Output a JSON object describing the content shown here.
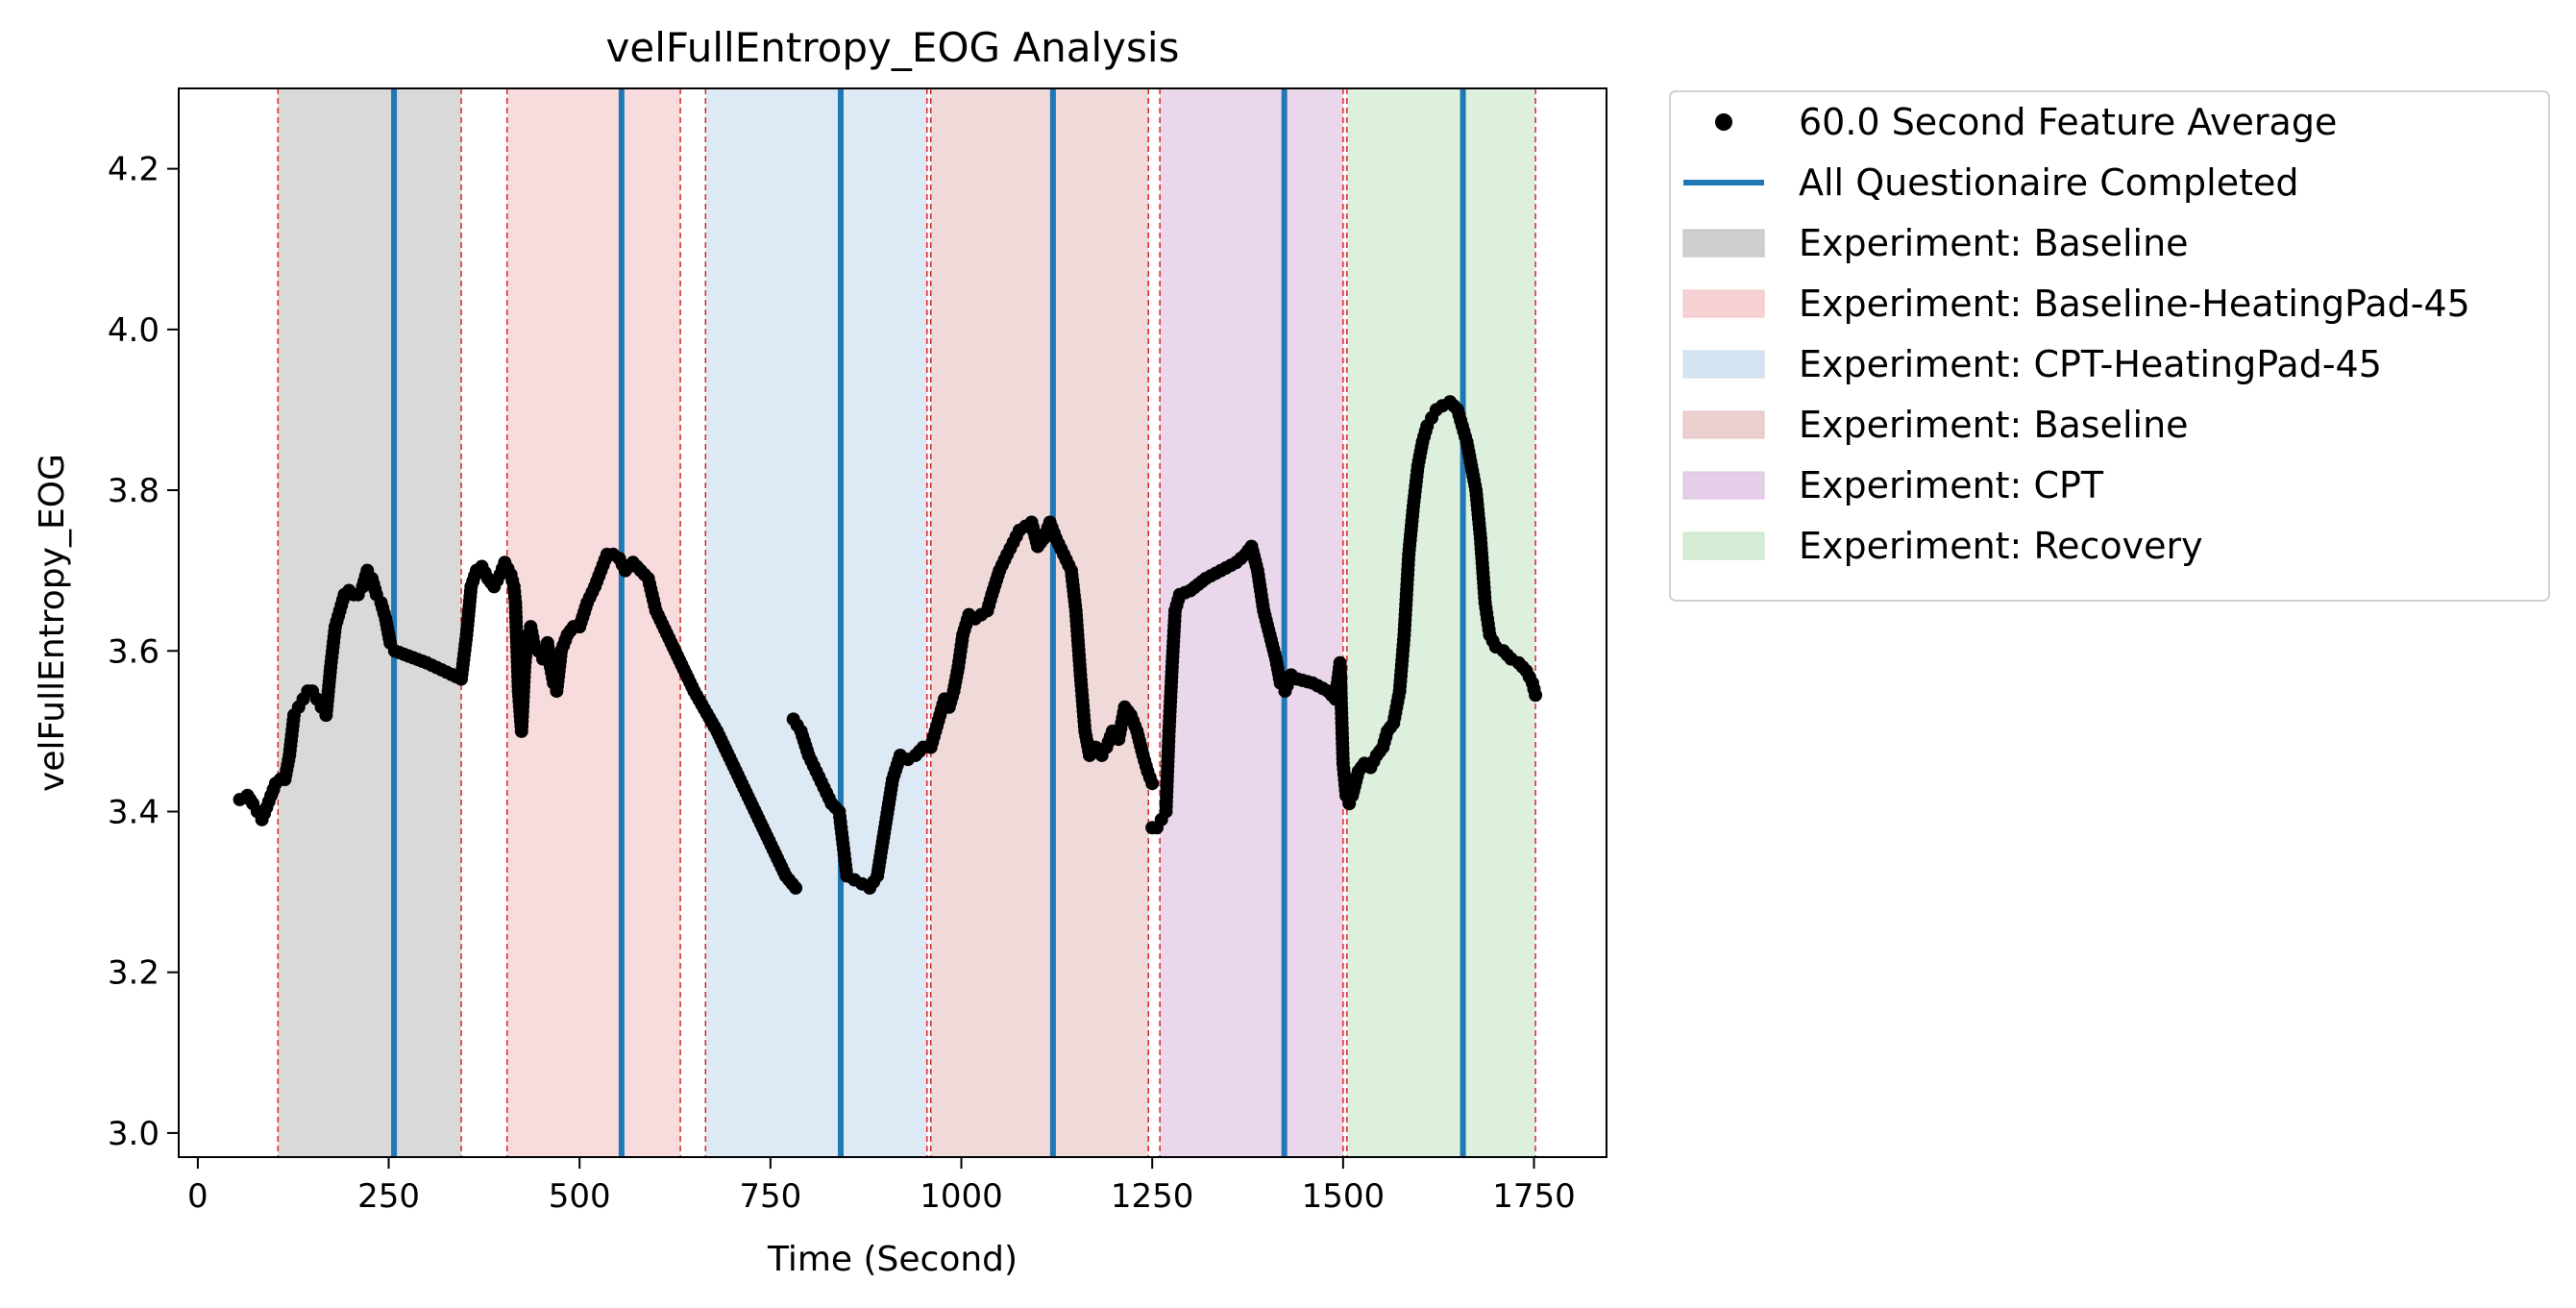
{
  "chart_data": {
    "type": "scatter",
    "title": "velFullEntropy_EOG Analysis",
    "xlabel": "Time (Second)",
    "ylabel": "velFullEntropy_EOG",
    "xlim": [
      -25,
      1845
    ],
    "ylim": [
      2.97,
      4.3
    ],
    "xticks": [
      0,
      250,
      500,
      750,
      1000,
      1250,
      1500,
      1750
    ],
    "yticks": [
      3.0,
      3.2,
      3.4,
      3.6,
      3.8,
      4.0,
      4.2
    ],
    "grid": false,
    "legend_position": "outside-top-right",
    "colors": {
      "points": "#000000",
      "questionnaire": "#1f77b4",
      "boundary": "#d62728"
    },
    "legend": [
      {
        "label": "60.0 Second Feature Average",
        "kind": "marker",
        "color": "#000000"
      },
      {
        "label": "All Questionaire Completed",
        "kind": "line",
        "color": "#1f77b4"
      },
      {
        "label": "Experiment: Baseline",
        "kind": "patch",
        "color": "#bfbfbf"
      },
      {
        "label": "Experiment: Baseline-HeatingPad-45",
        "kind": "patch",
        "color": "#f4c3c6"
      },
      {
        "label": "Experiment: CPT-HeatingPad-45",
        "kind": "patch",
        "color": "#c6dbee"
      },
      {
        "label": "Experiment: Baseline",
        "kind": "patch",
        "color": "#e6c0c0"
      },
      {
        "label": "Experiment: CPT",
        "kind": "patch",
        "color": "#dcbde0"
      },
      {
        "label": "Experiment: Recovery",
        "kind": "patch",
        "color": "#c6e6c6"
      }
    ],
    "regions": [
      {
        "x0": 105,
        "x1": 345,
        "color": "#bfbfbf"
      },
      {
        "x0": 405,
        "x1": 632,
        "color": "#f4c3c6"
      },
      {
        "x0": 665,
        "x1": 955,
        "color": "#c6dbee"
      },
      {
        "x0": 960,
        "x1": 1245,
        "color": "#e6c0c0"
      },
      {
        "x0": 1260,
        "x1": 1500,
        "color": "#dcbde0"
      },
      {
        "x0": 1505,
        "x1": 1752,
        "color": "#c6e6c6"
      }
    ],
    "boundaries": [
      105,
      345,
      405,
      632,
      665,
      955,
      960,
      1245,
      1260,
      1500,
      1505,
      1752
    ],
    "questionnaire_lines": [
      257,
      555,
      842,
      1120,
      1423,
      1657
    ],
    "series": [
      {
        "name": "60.0 Second Feature Average",
        "segments": [
          [
            [
              55,
              3.415
            ],
            [
              65,
              3.42
            ],
            [
              72,
              3.41
            ],
            [
              78,
              3.4
            ],
            [
              84,
              3.39
            ],
            [
              90,
              3.405
            ],
            [
              96,
              3.42
            ],
            [
              102,
              3.435
            ],
            [
              108,
              3.44
            ],
            [
              114,
              3.44
            ],
            [
              120,
              3.47
            ],
            [
              126,
              3.52
            ],
            [
              132,
              3.53
            ],
            [
              138,
              3.54
            ],
            [
              144,
              3.55
            ],
            [
              150,
              3.55
            ],
            [
              156,
              3.54
            ],
            [
              162,
              3.53
            ],
            [
              168,
              3.52
            ],
            [
              174,
              3.58
            ],
            [
              180,
              3.63
            ],
            [
              186,
              3.65
            ],
            [
              192,
              3.67
            ],
            [
              198,
              3.675
            ],
            [
              204,
              3.67
            ],
            [
              210,
              3.67
            ],
            [
              216,
              3.68
            ],
            [
              222,
              3.7
            ],
            [
              228,
              3.69
            ],
            [
              234,
              3.67
            ],
            [
              240,
              3.66
            ],
            [
              246,
              3.64
            ],
            [
              252,
              3.61
            ],
            [
              258,
              3.6
            ],
            [
              300,
              3.585
            ],
            [
              345,
              3.565
            ],
            [
              352,
              3.62
            ],
            [
              358,
              3.68
            ],
            [
              365,
              3.7
            ],
            [
              372,
              3.705
            ],
            [
              380,
              3.69
            ],
            [
              388,
              3.68
            ],
            [
              396,
              3.695
            ],
            [
              402,
              3.71
            ],
            [
              410,
              3.695
            ],
            [
              414,
              3.68
            ],
            [
              416,
              3.66
            ],
            [
              420,
              3.55
            ],
            [
              424,
              3.5
            ],
            [
              428,
              3.58
            ],
            [
              432,
              3.62
            ],
            [
              436,
              3.63
            ],
            [
              440,
              3.61
            ],
            [
              446,
              3.6
            ],
            [
              452,
              3.59
            ],
            [
              458,
              3.61
            ],
            [
              462,
              3.58
            ],
            [
              466,
              3.56
            ],
            [
              470,
              3.55
            ],
            [
              476,
              3.6
            ],
            [
              484,
              3.62
            ],
            [
              492,
              3.63
            ],
            [
              500,
              3.63
            ],
            [
              510,
              3.66
            ],
            [
              520,
              3.68
            ],
            [
              528,
              3.7
            ],
            [
              536,
              3.72
            ],
            [
              544,
              3.72
            ],
            [
              552,
              3.715
            ],
            [
              560,
              3.7
            ],
            [
              570,
              3.71
            ],
            [
              580,
              3.7
            ],
            [
              590,
              3.69
            ],
            [
              600,
              3.65
            ],
            [
              620,
              3.61
            ],
            [
              650,
              3.55
            ],
            [
              680,
              3.5
            ],
            [
              710,
              3.44
            ],
            [
              740,
              3.38
            ],
            [
              770,
              3.32
            ],
            [
              783,
              3.305
            ]
          ],
          [
            [
              780,
              3.515
            ],
            [
              790,
              3.5
            ],
            [
              800,
              3.47
            ],
            [
              810,
              3.45
            ],
            [
              820,
              3.43
            ],
            [
              830,
              3.41
            ],
            [
              840,
              3.4
            ],
            [
              845,
              3.36
            ],
            [
              850,
              3.32
            ],
            [
              860,
              3.315
            ],
            [
              870,
              3.31
            ],
            [
              880,
              3.305
            ],
            [
              890,
              3.32
            ],
            [
              900,
              3.38
            ],
            [
              910,
              3.44
            ],
            [
              920,
              3.47
            ],
            [
              930,
              3.465
            ],
            [
              940,
              3.47
            ],
            [
              950,
              3.48
            ],
            [
              960,
              3.48
            ],
            [
              966,
              3.5
            ],
            [
              972,
              3.52
            ],
            [
              978,
              3.54
            ],
            [
              984,
              3.53
            ],
            [
              990,
              3.55
            ],
            [
              996,
              3.58
            ],
            [
              1002,
              3.62
            ],
            [
              1010,
              3.645
            ],
            [
              1018,
              3.64
            ],
            [
              1026,
              3.645
            ],
            [
              1034,
              3.65
            ],
            [
              1040,
              3.67
            ],
            [
              1050,
              3.7
            ],
            [
              1060,
              3.72
            ],
            [
              1068,
              3.735
            ],
            [
              1076,
              3.75
            ],
            [
              1084,
              3.755
            ],
            [
              1092,
              3.76
            ],
            [
              1100,
              3.73
            ],
            [
              1108,
              3.74
            ],
            [
              1116,
              3.76
            ],
            [
              1124,
              3.74
            ],
            [
              1134,
              3.72
            ],
            [
              1144,
              3.7
            ],
            [
              1150,
              3.65
            ],
            [
              1156,
              3.57
            ],
            [
              1162,
              3.5
            ],
            [
              1168,
              3.47
            ],
            [
              1176,
              3.48
            ],
            [
              1184,
              3.47
            ],
            [
              1190,
              3.48
            ],
            [
              1198,
              3.5
            ],
            [
              1206,
              3.49
            ],
            [
              1214,
              3.53
            ],
            [
              1222,
              3.52
            ],
            [
              1230,
              3.5
            ],
            [
              1238,
              3.47
            ],
            [
              1244,
              3.45
            ],
            [
              1250,
              3.435
            ]
          ],
          [
            [
              1250,
              3.38
            ],
            [
              1256,
              3.38
            ],
            [
              1262,
              3.39
            ],
            [
              1268,
              3.4
            ],
            [
              1272,
              3.5
            ],
            [
              1276,
              3.58
            ],
            [
              1280,
              3.65
            ],
            [
              1286,
              3.67
            ],
            [
              1300,
              3.675
            ],
            [
              1320,
              3.69
            ],
            [
              1340,
              3.7
            ],
            [
              1360,
              3.71
            ],
            [
              1372,
              3.72
            ],
            [
              1380,
              3.73
            ],
            [
              1388,
              3.7
            ],
            [
              1396,
              3.65
            ],
            [
              1404,
              3.62
            ],
            [
              1412,
              3.59
            ],
            [
              1418,
              3.56
            ],
            [
              1424,
              3.55
            ],
            [
              1432,
              3.57
            ],
            [
              1440,
              3.565
            ],
            [
              1460,
              3.56
            ],
            [
              1480,
              3.55
            ],
            [
              1490,
              3.54
            ],
            [
              1496,
              3.585
            ],
            [
              1500,
              3.46
            ],
            [
              1504,
              3.42
            ],
            [
              1508,
              3.41
            ],
            [
              1512,
              3.42
            ],
            [
              1520,
              3.45
            ],
            [
              1528,
              3.46
            ],
            [
              1536,
              3.455
            ],
            [
              1544,
              3.47
            ],
            [
              1552,
              3.48
            ],
            [
              1558,
              3.5
            ],
            [
              1566,
              3.51
            ],
            [
              1574,
              3.55
            ],
            [
              1580,
              3.62
            ],
            [
              1586,
              3.72
            ],
            [
              1592,
              3.78
            ],
            [
              1598,
              3.83
            ],
            [
              1604,
              3.86
            ],
            [
              1610,
              3.88
            ],
            [
              1616,
              3.89
            ],
            [
              1622,
              3.9
            ],
            [
              1630,
              3.905
            ],
            [
              1640,
              3.91
            ],
            [
              1650,
              3.9
            ],
            [
              1656,
              3.88
            ],
            [
              1662,
              3.86
            ],
            [
              1668,
              3.83
            ],
            [
              1674,
              3.8
            ],
            [
              1680,
              3.74
            ],
            [
              1686,
              3.66
            ],
            [
              1692,
              3.62
            ],
            [
              1700,
              3.605
            ],
            [
              1710,
              3.6
            ],
            [
              1720,
              3.59
            ],
            [
              1730,
              3.585
            ],
            [
              1740,
              3.575
            ],
            [
              1748,
              3.56
            ],
            [
              1752,
              3.545
            ]
          ]
        ]
      }
    ]
  }
}
